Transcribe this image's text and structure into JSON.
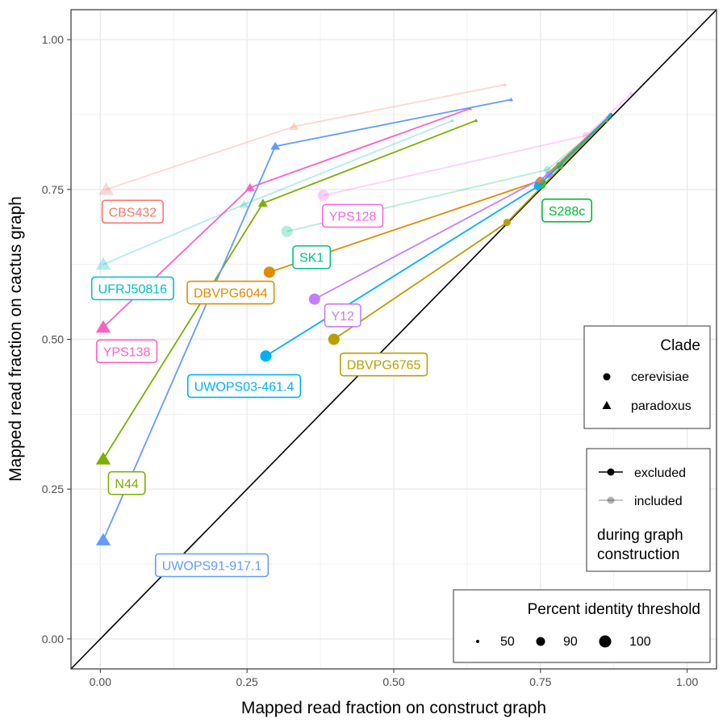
{
  "chart_data": {
    "type": "scatter",
    "xlabel": "Mapped read fraction on construct graph",
    "ylabel": "Mapped read fraction on cactus graph",
    "xlim": [
      -0.05,
      1.05
    ],
    "ylim": [
      -0.05,
      1.05
    ],
    "x_ticks": [
      "0.00",
      "0.25",
      "0.50",
      "0.75",
      "1.00"
    ],
    "y_ticks": [
      "0.00",
      "0.25",
      "0.50",
      "0.75",
      "1.00"
    ],
    "grid": true,
    "diagonal_line": true,
    "point_sizes": [
      {
        "threshold": 50,
        "r": 2
      },
      {
        "threshold": 90,
        "r": 4.5
      },
      {
        "threshold": 100,
        "r": 7
      }
    ],
    "series": [
      {
        "name": "CBS432",
        "clade": "paradoxus",
        "color": "#F8766D",
        "label_pos": [
          0.055,
          0.713
        ],
        "included": [
          [
            0.01,
            0.75
          ],
          [
            0.33,
            0.855
          ],
          [
            0.69,
            0.925
          ]
        ],
        "excluded": []
      },
      {
        "name": "UFRJ50816",
        "clade": "paradoxus",
        "color": "#00BFC4",
        "label_pos": [
          0.055,
          0.585
        ],
        "included": [
          [
            0.005,
            0.625
          ],
          [
            0.245,
            0.725
          ],
          [
            0.6,
            0.865
          ]
        ],
        "excluded": []
      },
      {
        "name": "YPS138",
        "clade": "paradoxus",
        "color": "#FF61C3",
        "label_pos": [
          0.045,
          0.48
        ],
        "included": [],
        "excluded": [
          [
            0.005,
            0.52
          ],
          [
            0.255,
            0.753
          ],
          [
            0.63,
            0.885
          ]
        ]
      },
      {
        "name": "N44",
        "clade": "paradoxus",
        "color": "#7CAE00",
        "label_pos": [
          0.045,
          0.26
        ],
        "included": [],
        "excluded": [
          [
            0.005,
            0.3
          ],
          [
            0.277,
            0.727
          ],
          [
            0.64,
            0.865
          ]
        ]
      },
      {
        "name": "UWOPS91-917.1",
        "clade": "paradoxus",
        "color": "#619CFF",
        "label_pos": [
          0.19,
          0.123
        ],
        "included": [],
        "excluded": [
          [
            0.005,
            0.165
          ],
          [
            0.298,
            0.822
          ],
          [
            0.7,
            0.9
          ]
        ]
      },
      {
        "name": "YPS128",
        "clade": "cerevisiae",
        "color": "#F564E3",
        "label_pos": [
          0.43,
          0.706
        ],
        "included": [
          [
            0.38,
            0.74
          ],
          [
            0.828,
            0.84
          ],
          [
            0.905,
            0.91
          ]
        ],
        "excluded": []
      },
      {
        "name": "SK1",
        "clade": "cerevisiae",
        "color": "#00C08B",
        "label_pos": [
          0.36,
          0.637
        ],
        "included": [
          [
            0.318,
            0.68
          ],
          [
            0.762,
            0.783
          ],
          [
            0.87,
            0.87
          ]
        ],
        "excluded": []
      },
      {
        "name": "S288c",
        "clade": "cerevisiae",
        "color": "#00BA38",
        "label_pos": [
          0.795,
          0.715
        ],
        "included": [],
        "excluded": [
          [
            0.75,
            0.76
          ],
          [
            0.783,
            0.79
          ],
          [
            0.87,
            0.875
          ]
        ]
      },
      {
        "name": "DBVPG6044",
        "clade": "cerevisiae",
        "color": "#DE8C00",
        "label_pos": [
          0.222,
          0.578
        ],
        "included": [],
        "excluded": [
          [
            0.288,
            0.612
          ],
          [
            0.75,
            0.765
          ],
          [
            0.865,
            0.87
          ]
        ]
      },
      {
        "name": "Y12",
        "clade": "cerevisiae",
        "color": "#C77CFF",
        "label_pos": [
          0.413,
          0.54
        ],
        "included": [],
        "excluded": [
          [
            0.365,
            0.567
          ],
          [
            0.765,
            0.775
          ],
          [
            0.868,
            0.873
          ]
        ]
      },
      {
        "name": "DBVPG6765",
        "clade": "cerevisiae",
        "color": "#B79F00",
        "label_pos": [
          0.483,
          0.458
        ],
        "included": [],
        "excluded": [
          [
            0.398,
            0.5
          ],
          [
            0.693,
            0.695
          ],
          [
            0.862,
            0.865
          ]
        ]
      },
      {
        "name": "UWOPS03-461.4",
        "clade": "cerevisiae",
        "color": "#00B0F6",
        "label_pos": [
          0.245,
          0.422
        ],
        "included": [],
        "excluded": [
          [
            0.282,
            0.472
          ],
          [
            0.745,
            0.755
          ],
          [
            0.868,
            0.873
          ]
        ]
      }
    ],
    "legends": {
      "clade": {
        "title": "Clade",
        "items": [
          "cerevisiae",
          "paradoxus"
        ]
      },
      "construction": {
        "items": [
          "excluded",
          "included"
        ],
        "caption_line1": "during graph",
        "caption_line2": "construction"
      },
      "threshold": {
        "title": "Percent identity threshold",
        "items": [
          "50",
          "90",
          "100"
        ]
      }
    }
  }
}
